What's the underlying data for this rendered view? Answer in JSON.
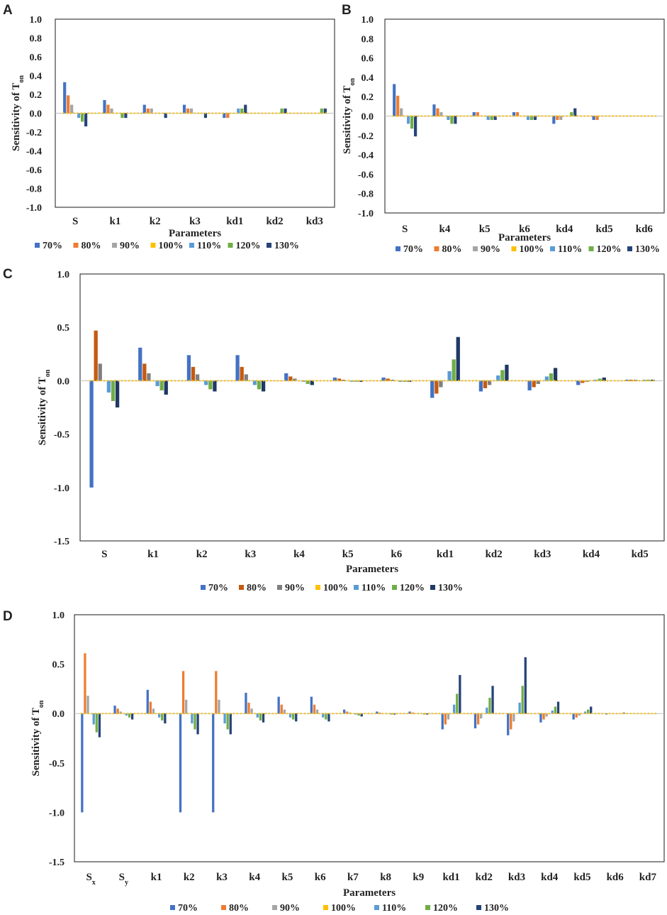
{
  "colors": {
    "70%": "#4472c4",
    "80%": "#ed7d31",
    "90%": "#a5a5a5",
    "100%": "#ffc000",
    "110%": "#5b9bd5",
    "120%": "#70ad47",
    "130%": "#264478"
  },
  "colors_c": {
    "70%": "#4472c4",
    "80%": "#c55a11",
    "90%": "#7f7f7f",
    "100%": "#ffc000",
    "110%": "#5b9bd5",
    "120%": "#70ad47",
    "130%": "#203864"
  },
  "chart_data": [
    {
      "panel": "A",
      "type": "bar",
      "title": "",
      "xlabel": "Parameters",
      "ylabel": "Sensitivity of T",
      "ylabel_sub": "on",
      "ylim": [
        -1.0,
        1.0
      ],
      "yticks": [
        "1.0",
        "0.8",
        "0.6",
        "0.4",
        "0.2",
        "0.0",
        "-0.2",
        "-0.4",
        "-0.6",
        "-0.8",
        "-1.0"
      ],
      "categories": [
        "S",
        "k1",
        "k2",
        "k3",
        "kd1",
        "kd2",
        "kd3"
      ],
      "series": [
        {
          "name": "70%",
          "values": [
            0.33,
            0.14,
            0.09,
            0.09,
            -0.05,
            0,
            0
          ]
        },
        {
          "name": "80%",
          "values": [
            0.19,
            0.09,
            0.05,
            0.05,
            -0.05,
            0,
            0
          ]
        },
        {
          "name": "90%",
          "values": [
            0.09,
            0.05,
            0.05,
            0.05,
            0,
            0,
            0
          ]
        },
        {
          "name": "100%",
          "values": [
            0,
            0,
            0,
            0,
            0,
            0,
            0
          ]
        },
        {
          "name": "110%",
          "values": [
            -0.05,
            0,
            0,
            0,
            0.05,
            0,
            0
          ]
        },
        {
          "name": "120%",
          "values": [
            -0.09,
            -0.05,
            0,
            0,
            0.05,
            0.05,
            0.05
          ]
        },
        {
          "name": "130%",
          "values": [
            -0.14,
            -0.05,
            -0.05,
            -0.05,
            0.09,
            0.05,
            0.05
          ]
        }
      ]
    },
    {
      "panel": "B",
      "type": "bar",
      "title": "",
      "xlabel": "Parameters",
      "ylabel": "Sensitivity of T",
      "ylabel_sub": "on",
      "ylim": [
        -1.0,
        1.0
      ],
      "yticks": [
        "1.0",
        "0.8",
        "0.6",
        "0.4",
        "0.2",
        "0.0",
        "-0.2",
        "-0.4",
        "-0.6",
        "-0.8",
        "-1.0"
      ],
      "categories": [
        "S",
        "k4",
        "k5",
        "k6",
        "kd4",
        "kd5",
        "kd6"
      ],
      "series": [
        {
          "name": "70%",
          "values": [
            0.33,
            0.12,
            0.04,
            0.04,
            -0.08,
            -0.04,
            0
          ]
        },
        {
          "name": "80%",
          "values": [
            0.21,
            0.08,
            0.04,
            0.04,
            -0.04,
            -0.04,
            0
          ]
        },
        {
          "name": "90%",
          "values": [
            0.08,
            0.04,
            0,
            0,
            -0.04,
            0,
            0
          ]
        },
        {
          "name": "100%",
          "values": [
            0,
            0,
            0,
            0,
            0,
            0,
            0
          ]
        },
        {
          "name": "110%",
          "values": [
            -0.08,
            -0.04,
            -0.04,
            -0.04,
            0,
            0,
            0
          ]
        },
        {
          "name": "120%",
          "values": [
            -0.13,
            -0.08,
            -0.04,
            -0.04,
            0.04,
            0,
            0
          ]
        },
        {
          "name": "130%",
          "values": [
            -0.21,
            -0.08,
            -0.04,
            -0.04,
            0.08,
            0,
            0
          ]
        }
      ]
    },
    {
      "panel": "C",
      "type": "bar",
      "title": "",
      "xlabel": "Parameters",
      "ylabel": "Sensitivity of T",
      "ylabel_sub": "on",
      "ylim": [
        -1.5,
        1.0
      ],
      "yticks": [
        "1.0",
        "0.5",
        "0.0",
        "-0.5",
        "-1.0",
        "-1.5"
      ],
      "categories": [
        "S",
        "k1",
        "k2",
        "k3",
        "k4",
        "k5",
        "k6",
        "kd1",
        "kd2",
        "kd3",
        "kd4",
        "kd5"
      ],
      "series": [
        {
          "name": "70%",
          "values": [
            -1.0,
            0.31,
            0.24,
            0.24,
            0.07,
            0.03,
            0.03,
            -0.16,
            -0.1,
            -0.09,
            -0.04,
            0.01
          ]
        },
        {
          "name": "80%",
          "values": [
            0.47,
            0.16,
            0.13,
            0.13,
            0.04,
            0.02,
            0.02,
            -0.12,
            -0.07,
            -0.06,
            -0.02,
            0.01
          ]
        },
        {
          "name": "90%",
          "values": [
            0.16,
            0.07,
            0.06,
            0.06,
            0.02,
            0.01,
            0.01,
            -0.06,
            -0.04,
            -0.03,
            -0.01,
            0.01
          ]
        },
        {
          "name": "100%",
          "values": [
            0,
            0,
            0,
            0,
            0,
            0,
            0,
            0,
            0,
            0,
            0,
            0
          ]
        },
        {
          "name": "110%",
          "values": [
            -0.11,
            -0.05,
            -0.04,
            -0.04,
            -0.01,
            -0.01,
            -0.01,
            0.09,
            0.05,
            0.04,
            0.01,
            0.01
          ]
        },
        {
          "name": "120%",
          "values": [
            -0.19,
            -0.09,
            -0.08,
            -0.08,
            -0.03,
            -0.01,
            -0.01,
            0.2,
            0.1,
            0.07,
            0.02,
            0.01
          ]
        },
        {
          "name": "130%",
          "values": [
            -0.25,
            -0.13,
            -0.1,
            -0.1,
            -0.04,
            -0.01,
            -0.01,
            0.41,
            0.15,
            0.12,
            0.03,
            0.01
          ]
        }
      ]
    },
    {
      "panel": "D",
      "type": "bar",
      "title": "",
      "xlabel": "Parameters",
      "ylabel": "Sensitivity of T",
      "ylabel_sub": "on",
      "ylim": [
        -1.5,
        1.0
      ],
      "yticks": [
        "1.0",
        "0.5",
        "0.0",
        "-0.5",
        "-1.0",
        "-1.5"
      ],
      "categories": [
        {
          "label": "S",
          "sub": "x"
        },
        {
          "label": "S",
          "sub": "y"
        },
        {
          "label": "k1"
        },
        {
          "label": "k2"
        },
        {
          "label": "k3"
        },
        {
          "label": "k4"
        },
        {
          "label": "k5"
        },
        {
          "label": "k6"
        },
        {
          "label": "k7"
        },
        {
          "label": "k8"
        },
        {
          "label": "k9"
        },
        {
          "label": "kd1"
        },
        {
          "label": "kd2"
        },
        {
          "label": "kd3"
        },
        {
          "label": "kd4"
        },
        {
          "label": "kd5"
        },
        {
          "label": "kd6"
        },
        {
          "label": "kd7"
        }
      ],
      "series": [
        {
          "name": "70%",
          "values": [
            -1.0,
            0.08,
            0.24,
            -1.0,
            -1.0,
            0.21,
            0.17,
            0.17,
            0.04,
            0.02,
            0.02,
            -0.16,
            -0.15,
            -0.22,
            -0.09,
            -0.06,
            -0.01,
            0
          ]
        },
        {
          "name": "80%",
          "values": [
            0.61,
            0.05,
            0.12,
            0.43,
            0.43,
            0.11,
            0.09,
            0.09,
            0.02,
            0.01,
            0.01,
            -0.11,
            -0.11,
            -0.16,
            -0.06,
            -0.04,
            0,
            0
          ]
        },
        {
          "name": "90%",
          "values": [
            0.18,
            0.02,
            0.05,
            0.14,
            0.14,
            0.05,
            0.04,
            0.04,
            0.01,
            0,
            0,
            -0.06,
            -0.05,
            -0.08,
            -0.03,
            -0.02,
            0,
            0
          ]
        },
        {
          "name": "100%",
          "values": [
            0,
            0,
            0,
            0,
            0,
            0,
            0,
            0,
            0,
            0,
            0,
            0,
            0,
            0,
            0,
            0,
            0,
            0
          ]
        },
        {
          "name": "110%",
          "values": [
            -0.11,
            -0.02,
            -0.04,
            -0.1,
            -0.1,
            -0.04,
            -0.04,
            -0.04,
            -0.01,
            0,
            0,
            0.09,
            0.06,
            0.11,
            0.03,
            0.02,
            0,
            0
          ]
        },
        {
          "name": "120%",
          "values": [
            -0.19,
            -0.04,
            -0.07,
            -0.16,
            -0.16,
            -0.07,
            -0.06,
            -0.06,
            -0.02,
            -0.01,
            -0.01,
            0.2,
            0.16,
            0.28,
            0.07,
            0.04,
            0,
            0
          ]
        },
        {
          "name": "130%",
          "values": [
            -0.24,
            -0.06,
            -0.1,
            -0.21,
            -0.21,
            -0.09,
            -0.08,
            -0.08,
            -0.03,
            -0.01,
            -0.01,
            0.39,
            0.28,
            0.57,
            0.12,
            0.07,
            0.01,
            0
          ]
        }
      ]
    }
  ]
}
